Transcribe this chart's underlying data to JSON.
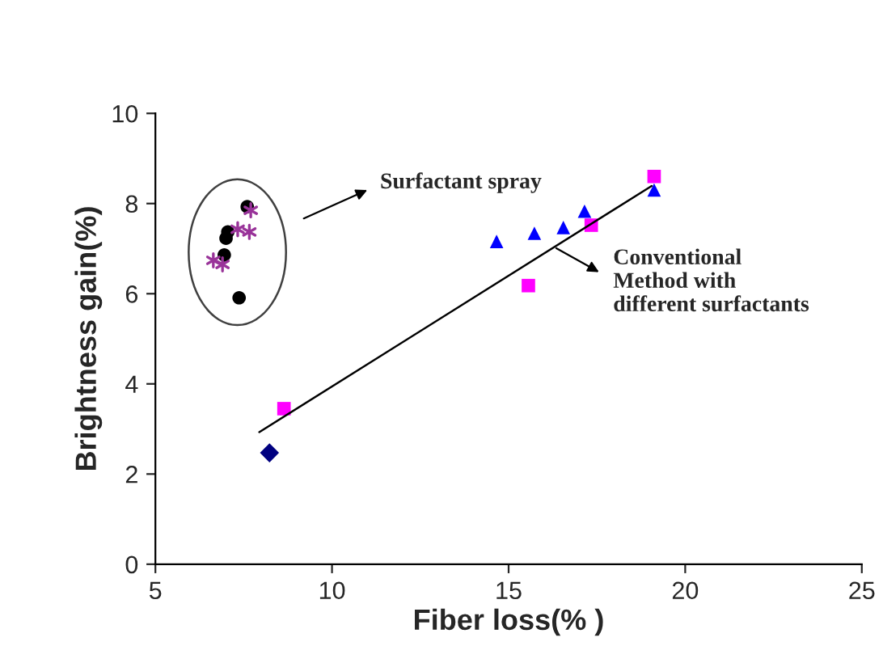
{
  "chart_data": {
    "type": "scatter",
    "xlabel": "Fiber loss(% )",
    "ylabel": "Brightness gain(%)",
    "xlim": [
      5,
      25
    ],
    "xticks": [
      5,
      10,
      15,
      20,
      25
    ],
    "ylim": [
      0,
      10
    ],
    "yticks": [
      0,
      2,
      4,
      6,
      8,
      10
    ],
    "grid": false,
    "legend": false,
    "series": [
      {
        "color": "#000000",
        "marker": "circle",
        "x": [
          7.6,
          7.05,
          7.0,
          6.95,
          7.37
        ],
        "values": [
          7.93,
          7.37,
          7.23,
          6.86,
          5.91
        ]
      },
      {
        "color": "#993399",
        "marker": "cross",
        "x": [
          6.64,
          6.9,
          7.33,
          7.66,
          7.7
        ],
        "values": [
          6.74,
          6.65,
          7.43,
          7.37,
          7.85
        ]
      },
      {
        "color": "#000080",
        "marker": "diamond",
        "x": [
          8.23
        ],
        "values": [
          2.47
        ]
      },
      {
        "color": "#ff00ff",
        "marker": "square",
        "x": [
          8.64,
          15.56,
          17.34,
          19.12
        ],
        "values": [
          3.45,
          6.18,
          7.52,
          8.6
        ]
      },
      {
        "color": "#0000ff",
        "marker": "triangle",
        "x": [
          14.66,
          15.73,
          16.55,
          17.15,
          19.12
        ],
        "values": [
          7.16,
          7.34,
          7.47,
          7.83,
          8.3
        ]
      },
      {
        "type": "line",
        "color": "#000000",
        "marker": "none",
        "line_style": "solid",
        "x": [
          7.94,
          19.05
        ],
        "values": [
          2.93,
          8.39
        ]
      }
    ],
    "annotations": [
      "Surfactant spray",
      "Conventional\nMethod with\ndifferent surfactants"
    ]
  }
}
